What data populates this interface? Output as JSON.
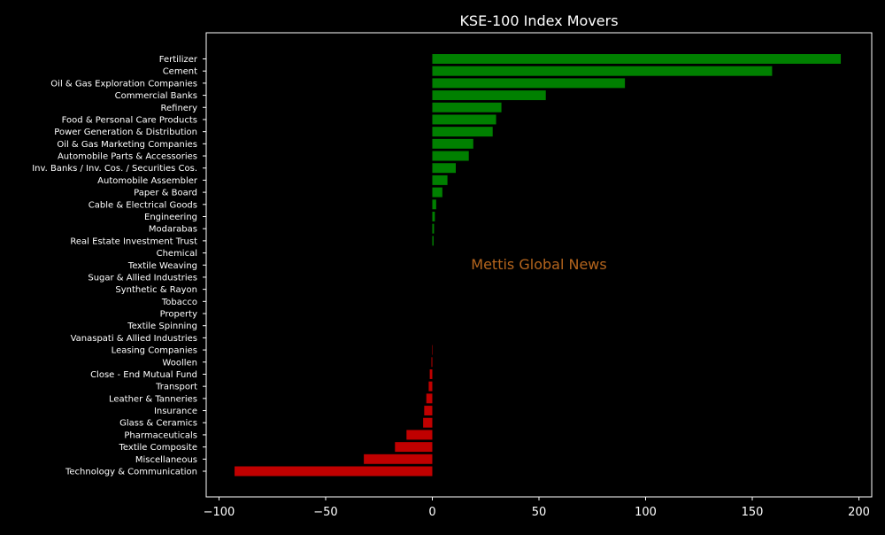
{
  "chart_data": {
    "type": "bar",
    "orientation": "horizontal",
    "title": "KSE-100 Index Movers",
    "xlabel": "",
    "ylabel": "",
    "xlim": [
      -106,
      206
    ],
    "xticks": [
      -100,
      -50,
      0,
      50,
      100,
      150,
      200
    ],
    "xtick_labels": [
      "−100",
      "−50",
      "0",
      "50",
      "100",
      "150",
      "200"
    ],
    "grid": false,
    "watermark": "Mettis Global News",
    "colors": {
      "background": "#000000",
      "positive": "#008000",
      "negative": "#c00000",
      "text": "#ffffff",
      "watermark": "#b5651d"
    },
    "categories": [
      "Fertilizer",
      "Cement",
      "Oil & Gas Exploration Companies",
      "Commercial Banks",
      "Refinery",
      "Food & Personal Care Products",
      "Power Generation & Distribution",
      "Oil & Gas Marketing Companies",
      "Automobile Parts & Accessories",
      "Inv. Banks / Inv. Cos. / Securities Cos.",
      "Automobile Assembler",
      "Paper & Board",
      "Cable & Electrical Goods",
      "Engineering",
      "Modarabas",
      "Real Estate Investment Trust",
      "Chemical",
      "Textile Weaving",
      "Sugar & Allied Industries",
      "Synthetic & Rayon",
      "Tobacco",
      "Property",
      "Textile Spinning",
      "Vanaspati & Allied Industries",
      "Leasing Companies",
      "Woollen",
      "Close - End Mutual Fund",
      "Transport",
      "Leather & Tanneries",
      "Insurance",
      "Glass & Ceramics",
      "Pharmaceuticals",
      "Textile Composite",
      "Miscellaneous",
      "Technology & Communication"
    ],
    "values": [
      191.5,
      159.3,
      90.3,
      53.2,
      32.4,
      29.9,
      28.3,
      19.2,
      17.1,
      11.0,
      7.1,
      4.7,
      1.8,
      1.2,
      0.8,
      0.6,
      0,
      0,
      0,
      0,
      0,
      0,
      0,
      0,
      -0.2,
      -0.4,
      -1.2,
      -1.7,
      -2.8,
      -3.8,
      -4.3,
      -12.1,
      -17.5,
      -32.1,
      -92.7
    ]
  }
}
